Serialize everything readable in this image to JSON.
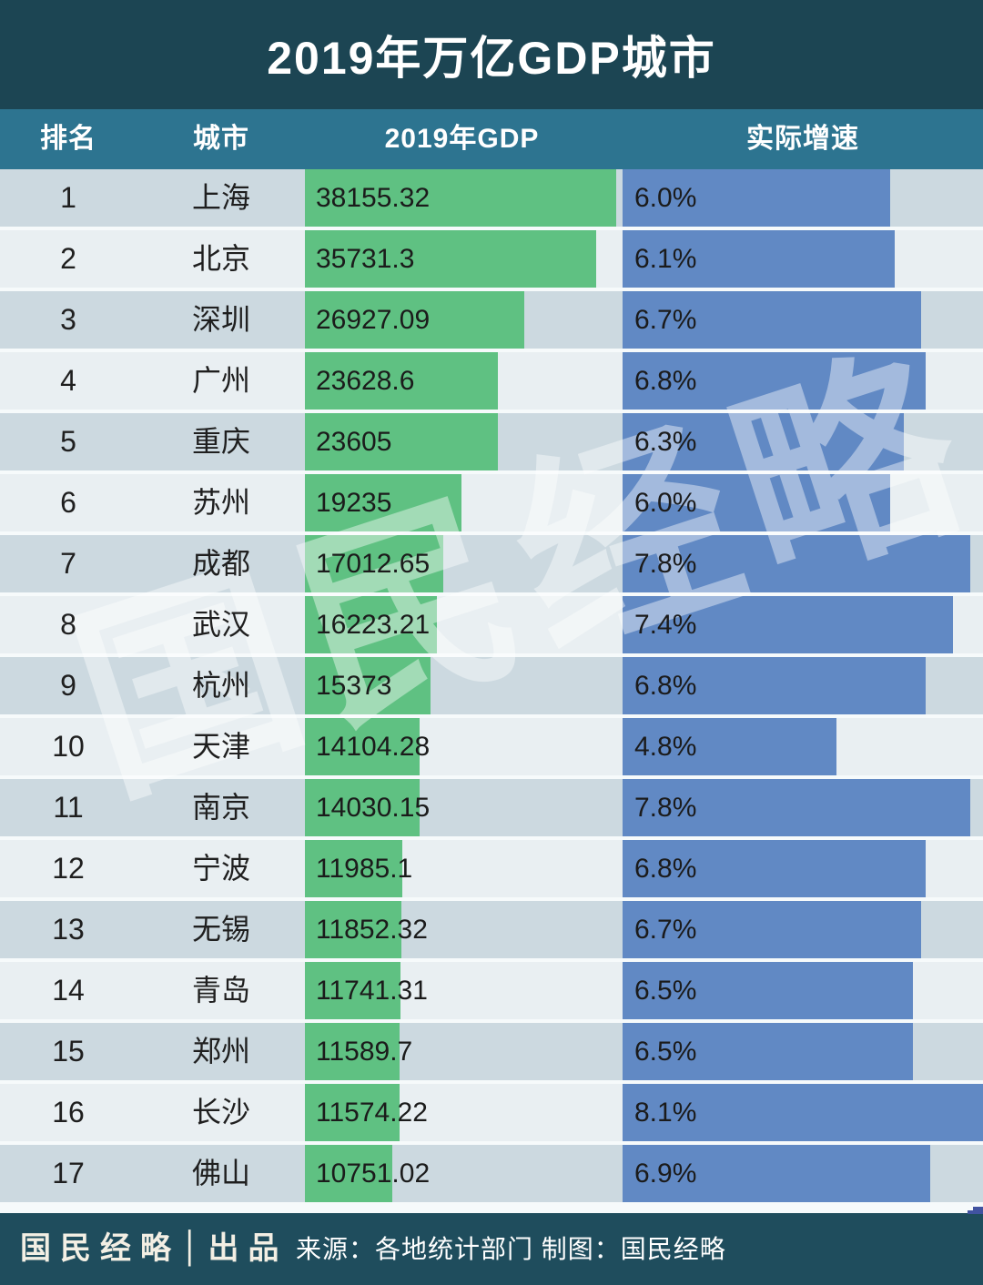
{
  "title": "2019年万亿GDP城市",
  "columns": {
    "rank": "排名",
    "city": "城市",
    "gdp": "2019年GDP",
    "growth": "实际增速"
  },
  "rows": [
    {
      "rank": "1",
      "city": "上海",
      "gdp": "38155.32",
      "gdp_value": 38155.32,
      "growth": "6.0%",
      "growth_value": 6.0
    },
    {
      "rank": "2",
      "city": "北京",
      "gdp": "35731.3",
      "gdp_value": 35731.3,
      "growth": "6.1%",
      "growth_value": 6.1
    },
    {
      "rank": "3",
      "city": "深圳",
      "gdp": "26927.09",
      "gdp_value": 26927.09,
      "growth": "6.7%",
      "growth_value": 6.7
    },
    {
      "rank": "4",
      "city": "广州",
      "gdp": "23628.6",
      "gdp_value": 23628.6,
      "growth": "6.8%",
      "growth_value": 6.8
    },
    {
      "rank": "5",
      "city": "重庆",
      "gdp": "23605",
      "gdp_value": 23605,
      "growth": "6.3%",
      "growth_value": 6.3
    },
    {
      "rank": "6",
      "city": "苏州",
      "gdp": "19235",
      "gdp_value": 19235,
      "growth": "6.0%",
      "growth_value": 6.0
    },
    {
      "rank": "7",
      "city": "成都",
      "gdp": "17012.65",
      "gdp_value": 17012.65,
      "growth": "7.8%",
      "growth_value": 7.8
    },
    {
      "rank": "8",
      "city": "武汉",
      "gdp": "16223.21",
      "gdp_value": 16223.21,
      "growth": "7.4%",
      "growth_value": 7.4
    },
    {
      "rank": "9",
      "city": "杭州",
      "gdp": "15373",
      "gdp_value": 15373,
      "growth": "6.8%",
      "growth_value": 6.8
    },
    {
      "rank": "10",
      "city": "天津",
      "gdp": "14104.28",
      "gdp_value": 14104.28,
      "growth": "4.8%",
      "growth_value": 4.8
    },
    {
      "rank": "11",
      "city": "南京",
      "gdp": "14030.15",
      "gdp_value": 14030.15,
      "growth": "7.8%",
      "growth_value": 7.8
    },
    {
      "rank": "12",
      "city": "宁波",
      "gdp": "11985.1",
      "gdp_value": 11985.1,
      "growth": "6.8%",
      "growth_value": 6.8
    },
    {
      "rank": "13",
      "city": "无锡",
      "gdp": "11852.32",
      "gdp_value": 11852.32,
      "growth": "6.7%",
      "growth_value": 6.7
    },
    {
      "rank": "14",
      "city": "青岛",
      "gdp": "11741.31",
      "gdp_value": 11741.31,
      "growth": "6.5%",
      "growth_value": 6.5
    },
    {
      "rank": "15",
      "city": "郑州",
      "gdp": "11589.7",
      "gdp_value": 11589.7,
      "growth": "6.5%",
      "growth_value": 6.5
    },
    {
      "rank": "16",
      "city": "长沙",
      "gdp": "11574.22",
      "gdp_value": 11574.22,
      "growth": "8.1%",
      "growth_value": 8.1
    },
    {
      "rank": "17",
      "city": "佛山",
      "gdp": "10751.02",
      "gdp_value": 10751.02,
      "growth": "6.9%",
      "growth_value": 6.9
    }
  ],
  "chart_data": {
    "type": "bar",
    "title": "2019年万亿GDP城市",
    "categories": [
      "上海",
      "北京",
      "深圳",
      "广州",
      "重庆",
      "苏州",
      "成都",
      "武汉",
      "杭州",
      "天津",
      "南京",
      "宁波",
      "无锡",
      "青岛",
      "郑州",
      "长沙",
      "佛山"
    ],
    "series": [
      {
        "name": "2019年GDP",
        "values": [
          38155.32,
          35731.3,
          26927.09,
          23628.6,
          23605,
          19235,
          17012.65,
          16223.21,
          15373,
          14104.28,
          14030.15,
          11985.1,
          11852.32,
          11741.31,
          11589.7,
          11574.22,
          10751.02
        ]
      },
      {
        "name": "实际增速(%)",
        "values": [
          6.0,
          6.1,
          6.7,
          6.8,
          6.3,
          6.0,
          7.8,
          7.4,
          6.8,
          4.8,
          7.8,
          6.8,
          6.7,
          6.5,
          6.5,
          8.1,
          6.9
        ]
      }
    ],
    "orientation": "horizontal",
    "legend_position": "none",
    "grid": false,
    "gdp_axis_max": 38155.32,
    "growth_axis_max": 8.1
  },
  "watermark": "国民经略",
  "footer": {
    "brand": "国民经略",
    "brand_separator": "│",
    "brand_suffix": "出品",
    "source": "来源：各地统计部门 制图：国民经略"
  },
  "colors": {
    "title_bg": "#1c4553",
    "header_bg": "#2d7490",
    "row_odd_bg": "#ccd9e0",
    "row_even_bg": "#e9eff2",
    "gdp_bar": "#5fc182",
    "growth_bar": "#6189c4",
    "footer_bg": "#1f4d5d",
    "corner_mark": "#4153a0"
  }
}
